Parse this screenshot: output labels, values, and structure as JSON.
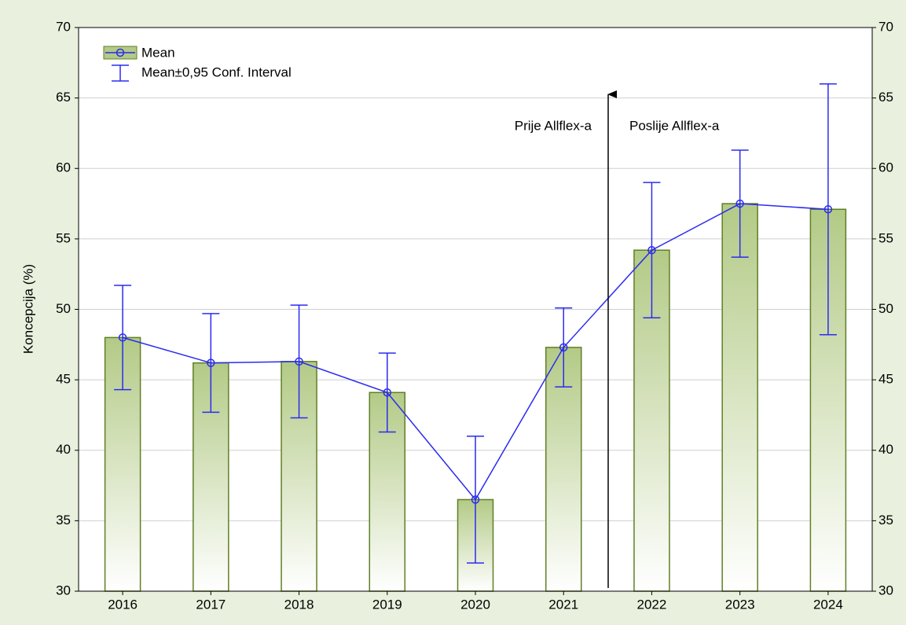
{
  "chart_data": {
    "type": "bar_line_errorbar",
    "ylabel": "Koncepcija (%)",
    "categories": [
      "2016",
      "2017",
      "2018",
      "2019",
      "2020",
      "2021",
      "2022",
      "2023",
      "2024"
    ],
    "series": [
      {
        "name": "Mean",
        "color": "#2b2bf0",
        "bar_color": "#b3ca86",
        "bar_edge": "#5f7f25",
        "values": [
          48.0,
          46.2,
          46.3,
          44.1,
          36.5,
          47.3,
          54.2,
          57.5,
          57.1
        ],
        "errors": [
          3.7,
          3.5,
          4.0,
          2.8,
          4.5,
          2.8,
          4.8,
          3.8,
          8.9
        ]
      }
    ],
    "error_legend": "Mean±0,95 Conf. Interval",
    "annotations": [
      "Prije Allflex-a",
      "Poslije Allflex-a"
    ],
    "ylim": [
      30,
      70
    ],
    "yticks": [
      30,
      35,
      40,
      45,
      50,
      55,
      60,
      65,
      70
    ],
    "y2lim": [
      30,
      70
    ],
    "y2ticks": [
      30,
      35,
      40,
      45,
      50,
      55,
      60,
      65,
      70
    ],
    "grid": true
  }
}
